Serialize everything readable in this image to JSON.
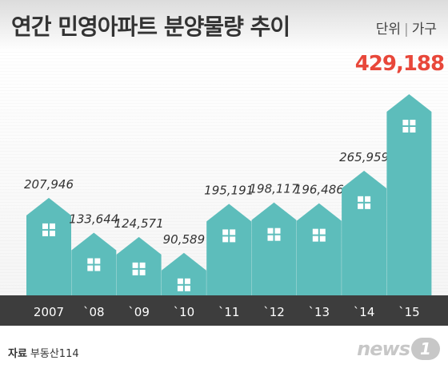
{
  "header": {
    "title": "연간 민영아파트 분양물량 추이",
    "unit_label": "단위",
    "unit_value": "가구"
  },
  "footer": {
    "source_label": "자료",
    "source_value": "부동산114",
    "logo_text": "news",
    "logo_badge": "1"
  },
  "chart_data": {
    "type": "bar",
    "title": "연간 민영아파트 분양물량 추이",
    "unit": "가구",
    "categories": [
      "2007",
      "`08",
      "`09",
      "`10",
      "`11",
      "`12",
      "`13",
      "`14",
      "`15"
    ],
    "values": [
      207946,
      133644,
      124571,
      90589,
      195191,
      198117,
      196486,
      265959,
      429188
    ],
    "value_labels": [
      "207,946",
      "133,644",
      "124,571",
      "90,589",
      "195,191",
      "198,117",
      "196,486",
      "265,959",
      "429,188"
    ],
    "highlight_index": 8,
    "colors": {
      "bar": "#5dbdbb",
      "window": "#ffffff",
      "axis_band": "#3d3d3d",
      "axis_text": "#ffffff",
      "label": "#333333",
      "highlight_label": "#e8473a"
    }
  }
}
